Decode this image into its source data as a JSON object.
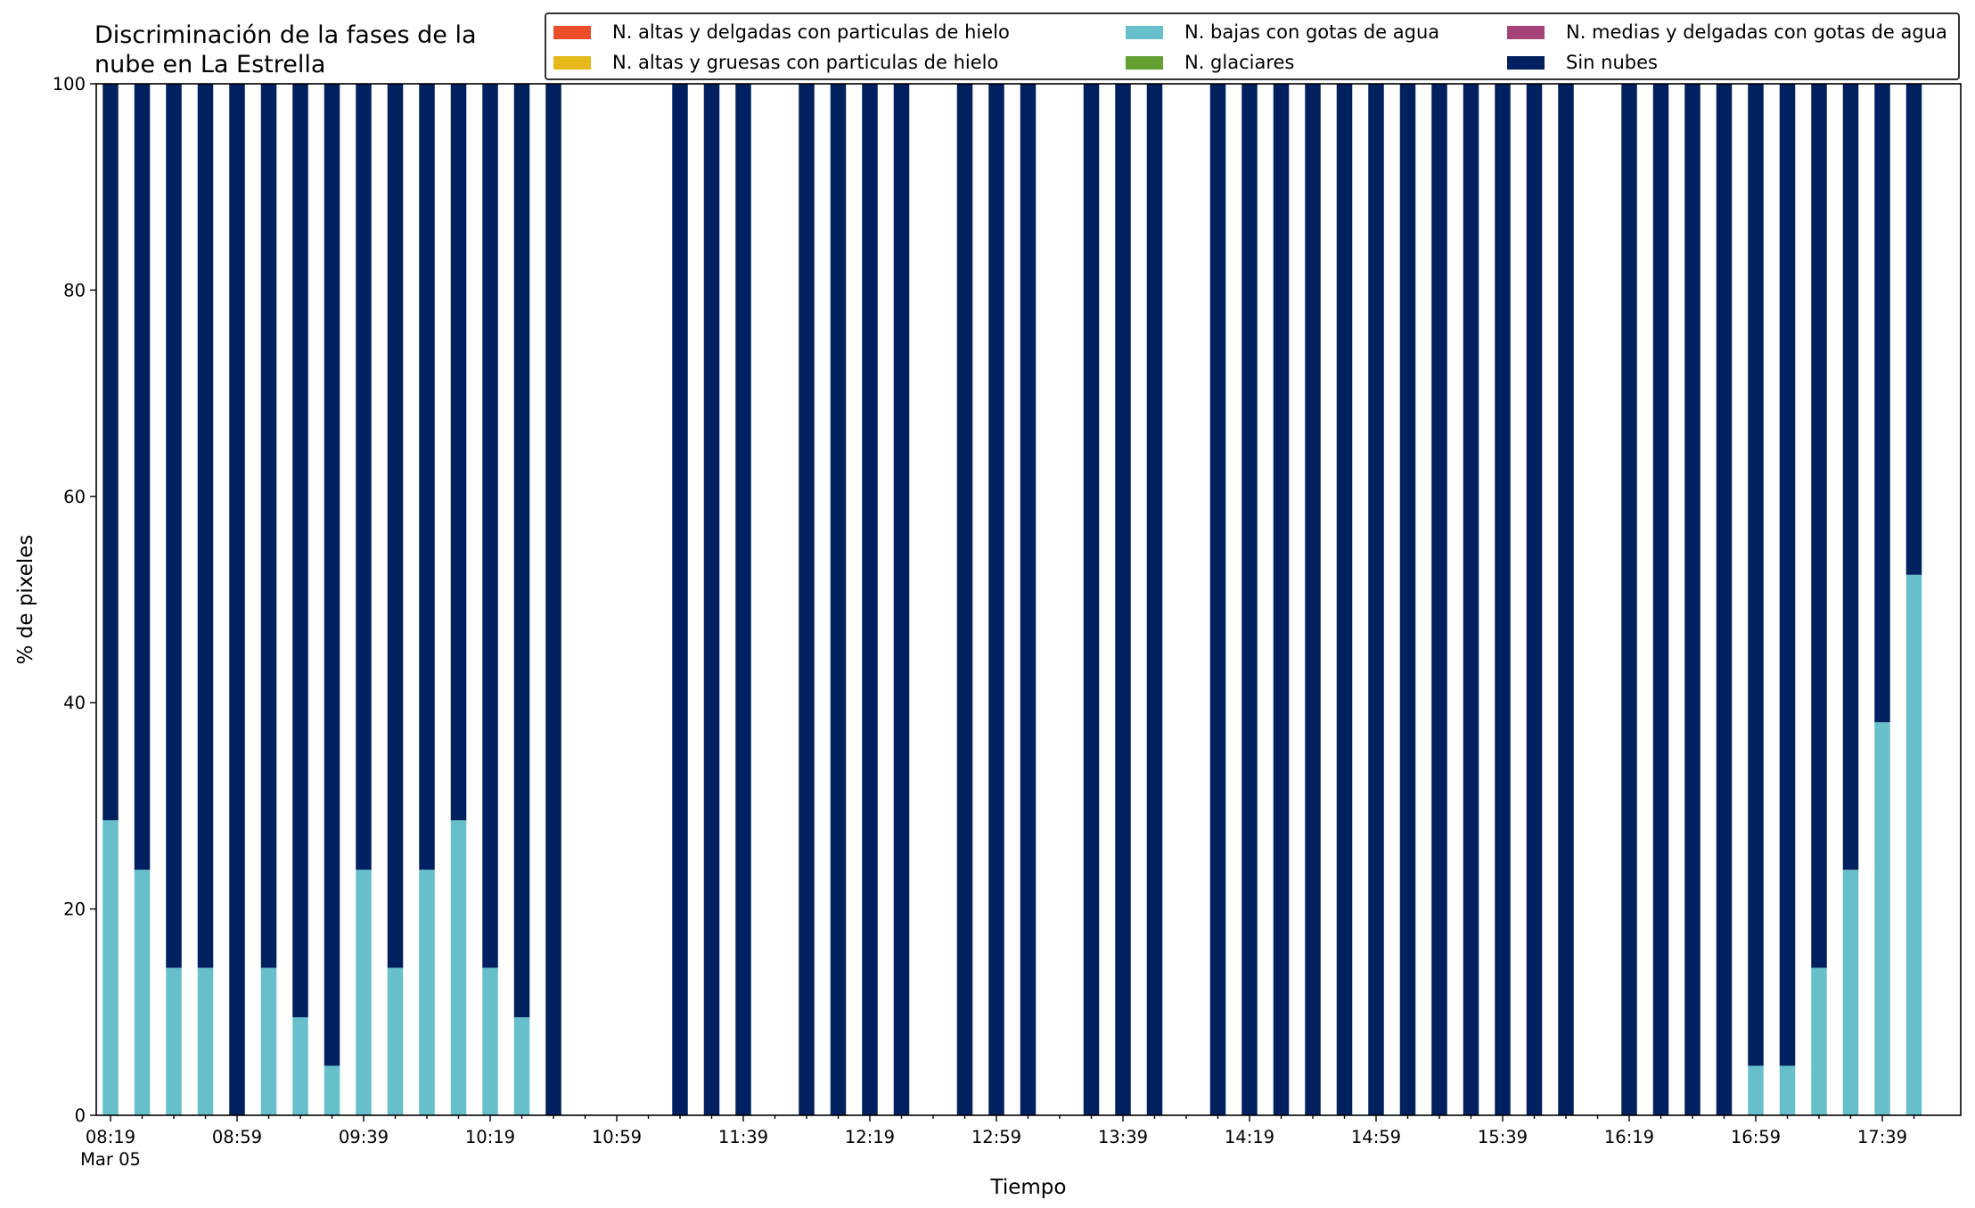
{
  "chart_data": {
    "type": "bar",
    "stacked": true,
    "title": "Discriminación de la fases de la nube en La Estrella",
    "title_lines": [
      "Discriminación de la fases de la",
      "nube en La Estrella"
    ],
    "xlabel": "Tiempo",
    "ylabel": "% de pixeles",
    "ylim": [
      0,
      100
    ],
    "y_ticks": [
      0,
      20,
      40,
      60,
      80,
      100
    ],
    "x_start": "08:19",
    "x_step_minutes": 10,
    "x_date_label": "Mar 05",
    "x_tick_labels": [
      "08:19",
      "08:59",
      "09:39",
      "10:19",
      "10:59",
      "11:39",
      "12:19",
      "12:59",
      "13:39",
      "14:19",
      "14:59",
      "15:39",
      "16:19",
      "16:59",
      "17:39"
    ],
    "x_tick_label_every": 4,
    "x_count": 58,
    "grid": false,
    "legend_position": "top-right",
    "series": [
      {
        "name": "N. altas y delgadas con particulas de hielo",
        "color": "#ec4e2c",
        "values": [
          0,
          0,
          0,
          0,
          0,
          0,
          0,
          0,
          0,
          0,
          0,
          0,
          0,
          0,
          0,
          0,
          0,
          0,
          0,
          0,
          0,
          0,
          0,
          0,
          0,
          0,
          0,
          0,
          0,
          0,
          0,
          0,
          0,
          0,
          0,
          0,
          0,
          0,
          0,
          0,
          0,
          0,
          0,
          0,
          0,
          0,
          0,
          0,
          0,
          0,
          0,
          0,
          0,
          0,
          0,
          0,
          0,
          0
        ]
      },
      {
        "name": "N. altas y gruesas con particulas de hielo",
        "color": "#e6b819",
        "values": [
          0,
          0,
          0,
          0,
          0,
          0,
          0,
          0,
          0,
          0,
          0,
          0,
          0,
          0,
          0,
          0,
          0,
          0,
          0,
          0,
          0,
          0,
          0,
          0,
          0,
          0,
          0,
          0,
          0,
          0,
          0,
          0,
          0,
          0,
          0,
          0,
          0,
          0,
          0,
          0,
          0,
          0,
          0,
          0,
          0,
          0,
          0,
          0,
          0,
          0,
          0,
          0,
          0,
          0,
          0,
          0,
          0,
          0
        ]
      },
      {
        "name": "N. bajas con gotas de agua",
        "color": "#66bfca",
        "values": [
          28.6,
          23.8,
          14.3,
          14.3,
          0,
          14.3,
          9.5,
          4.8,
          23.8,
          14.3,
          23.8,
          28.6,
          14.3,
          9.5,
          0,
          0,
          0,
          0,
          0,
          0,
          0,
          0,
          0,
          0,
          0,
          0,
          0,
          0,
          0,
          0,
          0,
          0,
          0,
          0,
          0,
          0,
          0,
          0,
          0,
          0,
          0,
          0,
          0,
          0,
          0,
          0,
          0,
          0,
          0,
          0,
          0,
          0,
          4.8,
          4.8,
          14.3,
          23.8,
          38.1,
          52.4
        ]
      },
      {
        "name": "N. glaciares",
        "color": "#62a032",
        "values": [
          0,
          0,
          0,
          0,
          0,
          0,
          0,
          0,
          0,
          0,
          0,
          0,
          0,
          0,
          0,
          0,
          0,
          0,
          0,
          0,
          0,
          0,
          0,
          0,
          0,
          0,
          0,
          0,
          0,
          0,
          0,
          0,
          0,
          0,
          0,
          0,
          0,
          0,
          0,
          0,
          0,
          0,
          0,
          0,
          0,
          0,
          0,
          0,
          0,
          0,
          0,
          0,
          0,
          0,
          0,
          0,
          0,
          0
        ]
      },
      {
        "name": "N. medias y delgadas con gotas de agua",
        "color": "#a54378",
        "values": [
          0,
          0,
          0,
          0,
          0,
          0,
          0,
          0,
          0,
          0,
          0,
          0,
          0,
          0,
          0,
          0,
          0,
          0,
          0,
          0,
          0,
          0,
          0,
          0,
          0,
          0,
          0,
          0,
          0,
          0,
          0,
          0,
          0,
          0,
          0,
          0,
          0,
          0,
          0,
          0,
          0,
          0,
          0,
          0,
          0,
          0,
          0,
          0,
          0,
          0,
          0,
          0,
          0,
          0,
          0,
          0,
          0,
          0
        ]
      },
      {
        "name": "Sin nubes",
        "color": "#002060",
        "values": [
          71.4,
          76.2,
          85.7,
          85.7,
          100,
          85.7,
          90.5,
          95.2,
          76.2,
          85.7,
          76.2,
          71.4,
          85.7,
          90.5,
          100,
          null,
          null,
          null,
          100,
          100,
          100,
          null,
          100,
          100,
          100,
          100,
          null,
          100,
          100,
          100,
          null,
          100,
          100,
          100,
          null,
          100,
          100,
          100,
          100,
          100,
          100,
          100,
          100,
          100,
          100,
          100,
          100,
          null,
          100,
          100,
          100,
          100,
          95.2,
          95.2,
          85.7,
          76.2,
          61.9,
          47.6
        ]
      }
    ]
  }
}
